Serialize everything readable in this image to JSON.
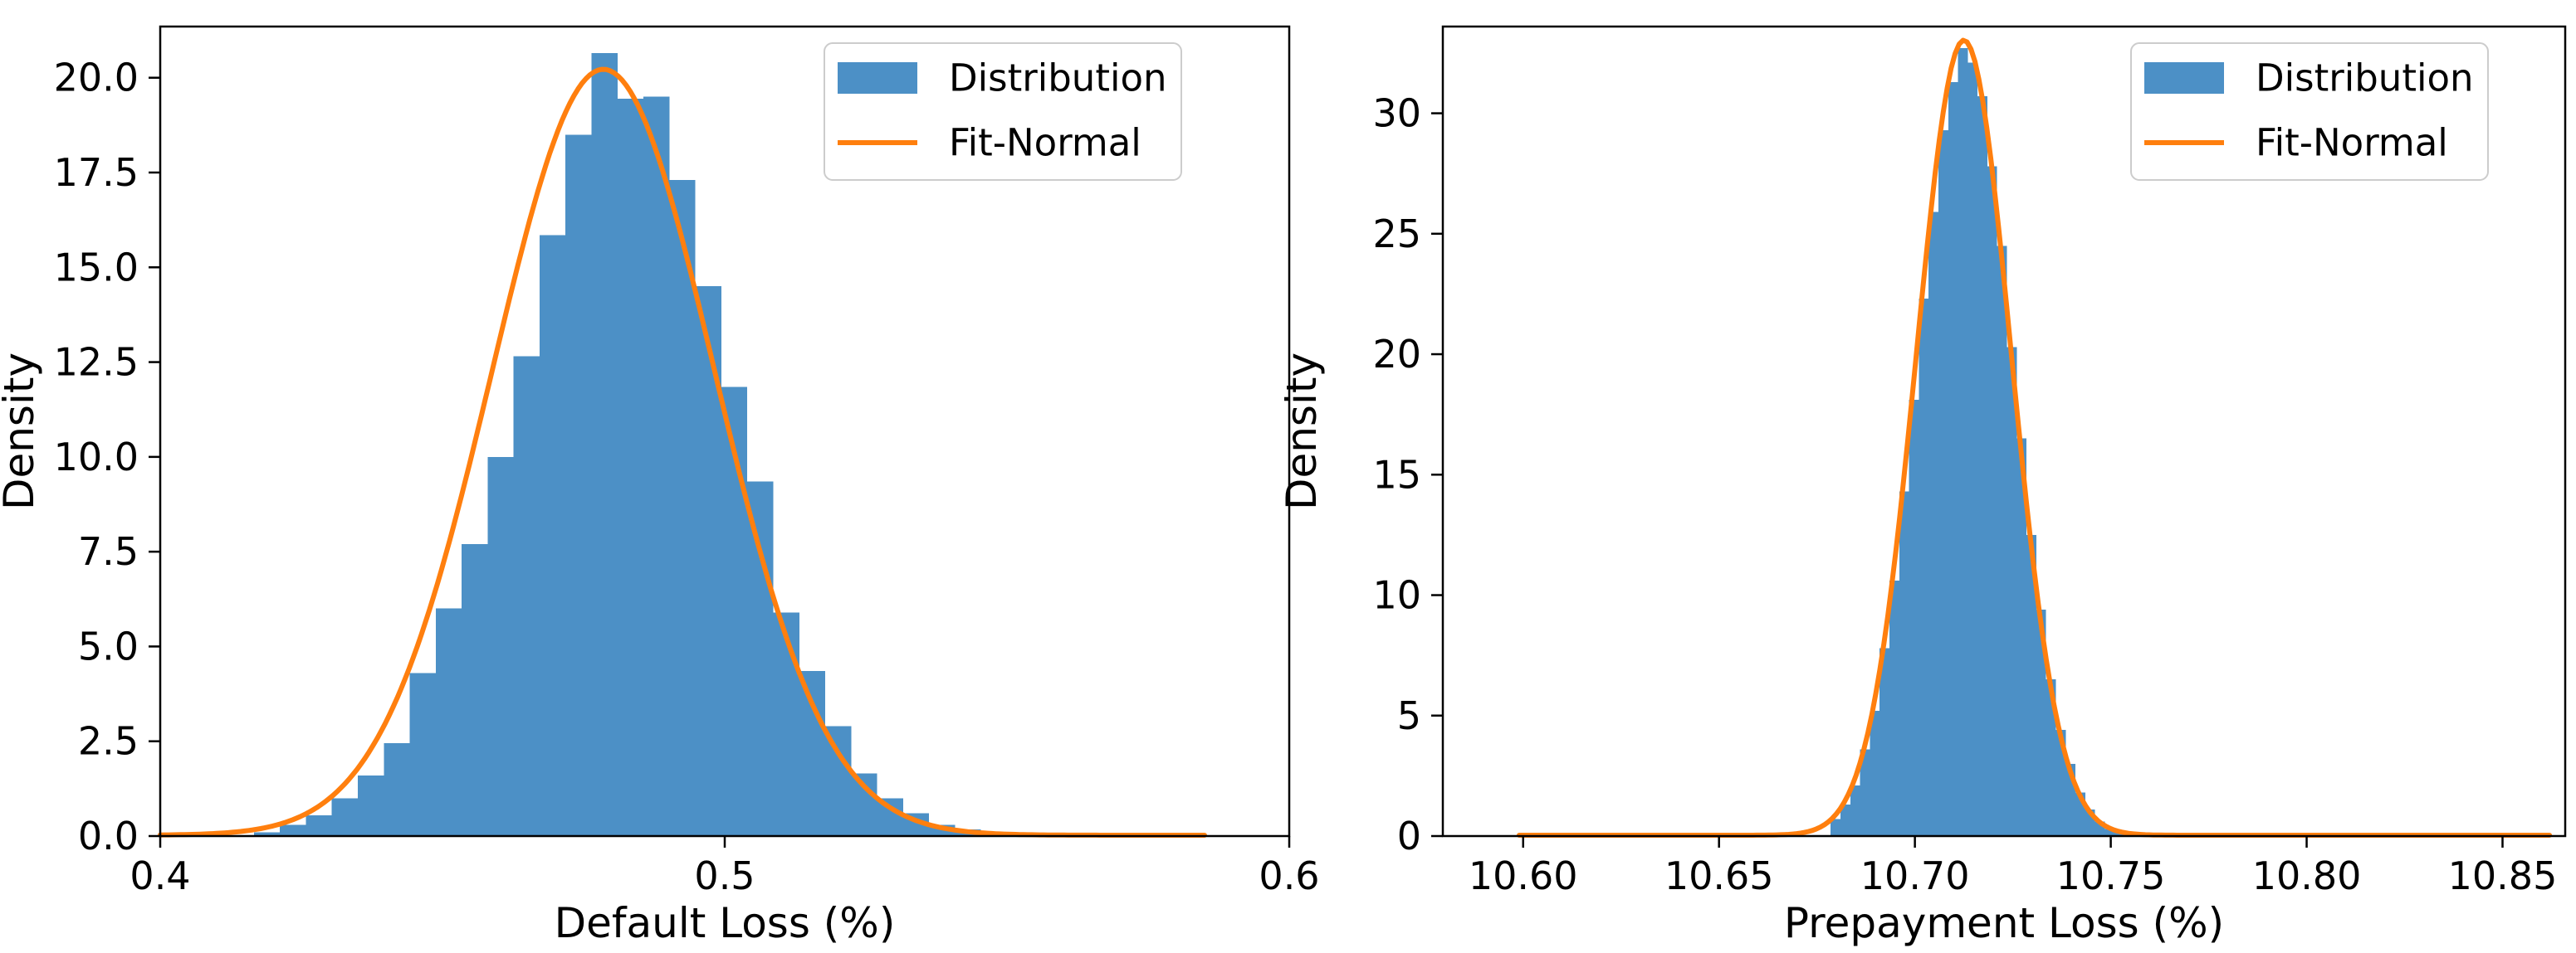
{
  "figure": {
    "background": "#ffffff",
    "frame_color": "#000000",
    "text_color": "#000000",
    "legend_border_color": "#cccccc"
  },
  "legend": {
    "items": [
      {
        "label": "Distribution",
        "type": "patch",
        "color": "#4c90c6"
      },
      {
        "label": "Fit-Normal",
        "type": "line",
        "color": "#ff7f0e"
      }
    ]
  },
  "chart_data": [
    {
      "type": "bar",
      "subtype": "histogram-with-normal-fit",
      "title": "",
      "xlabel": "Default Loss (%)",
      "ylabel": "Density",
      "xlim": [
        0.4,
        0.6
      ],
      "ylim": [
        0,
        21.35
      ],
      "grid": false,
      "legend_position": "upper right",
      "xticks": {
        "values": [
          0.4,
          0.5,
          0.6
        ],
        "labels": [
          "0.4",
          "0.5",
          "0.6"
        ]
      },
      "yticks": {
        "values": [
          0,
          2.5,
          5,
          7.5,
          10,
          12.5,
          15,
          17.5,
          20
        ],
        "labels": [
          "0.0",
          "2.5",
          "5.0",
          "7.5",
          "10.0",
          "12.5",
          "15.0",
          "17.5",
          "20.0"
        ]
      },
      "series": [
        {
          "name": "Distribution",
          "type": "histogram",
          "color": "#4c90c6",
          "bin_start": 0.4166,
          "bin_width": 0.0046,
          "densities": [
            0.1,
            0.3,
            0.55,
            1.0,
            1.6,
            2.45,
            4.3,
            6.0,
            7.7,
            10.0,
            12.65,
            15.85,
            18.5,
            20.65,
            19.45,
            19.5,
            17.3,
            14.5,
            11.85,
            9.35,
            5.9,
            4.35,
            2.9,
            1.65,
            1.0,
            0.6,
            0.3,
            0.18,
            0.1,
            0.05
          ]
        },
        {
          "name": "Fit-Normal",
          "type": "line",
          "color": "#ff7f0e",
          "distribution": "normal",
          "mean": 0.4785,
          "std": 0.0197,
          "peak_density": 20.2,
          "x_range": [
            0.4,
            0.585
          ]
        }
      ]
    },
    {
      "type": "bar",
      "subtype": "histogram-with-normal-fit",
      "title": "",
      "xlabel": "Prepayment Loss (%)",
      "ylabel": "Density",
      "xlim": [
        10.5795,
        10.866
      ],
      "ylim": [
        0,
        33.6
      ],
      "grid": false,
      "legend_position": "upper right",
      "xticks": {
        "values": [
          10.6,
          10.65,
          10.7,
          10.75,
          10.8,
          10.85
        ],
        "labels": [
          "10.60",
          "10.65",
          "10.70",
          "10.75",
          "10.80",
          "10.85"
        ]
      },
      "yticks": {
        "values": [
          0,
          5,
          10,
          15,
          20,
          25,
          30
        ],
        "labels": [
          "0",
          "5",
          "10",
          "15",
          "20",
          "25",
          "30"
        ]
      },
      "series": [
        {
          "name": "Distribution",
          "type": "histogram",
          "color": "#4c90c6",
          "bin_start": 10.6785,
          "bin_width": 0.0025,
          "densities": [
            0.7,
            1.3,
            2.1,
            3.6,
            5.2,
            7.8,
            10.6,
            14.3,
            18.1,
            22.3,
            25.9,
            29.3,
            31.3,
            32.7,
            32.1,
            30.7,
            27.8,
            24.5,
            20.3,
            16.5,
            12.5,
            9.4,
            6.5,
            4.4,
            3.0,
            1.8,
            1.1,
            0.6,
            0.3,
            0.15
          ]
        },
        {
          "name": "Fit-Normal",
          "type": "line",
          "color": "#ff7f0e",
          "distribution": "normal",
          "mean": 10.7125,
          "std": 0.0121,
          "peak_density": 33.0,
          "x_range": [
            10.599,
            10.862
          ]
        }
      ]
    }
  ]
}
